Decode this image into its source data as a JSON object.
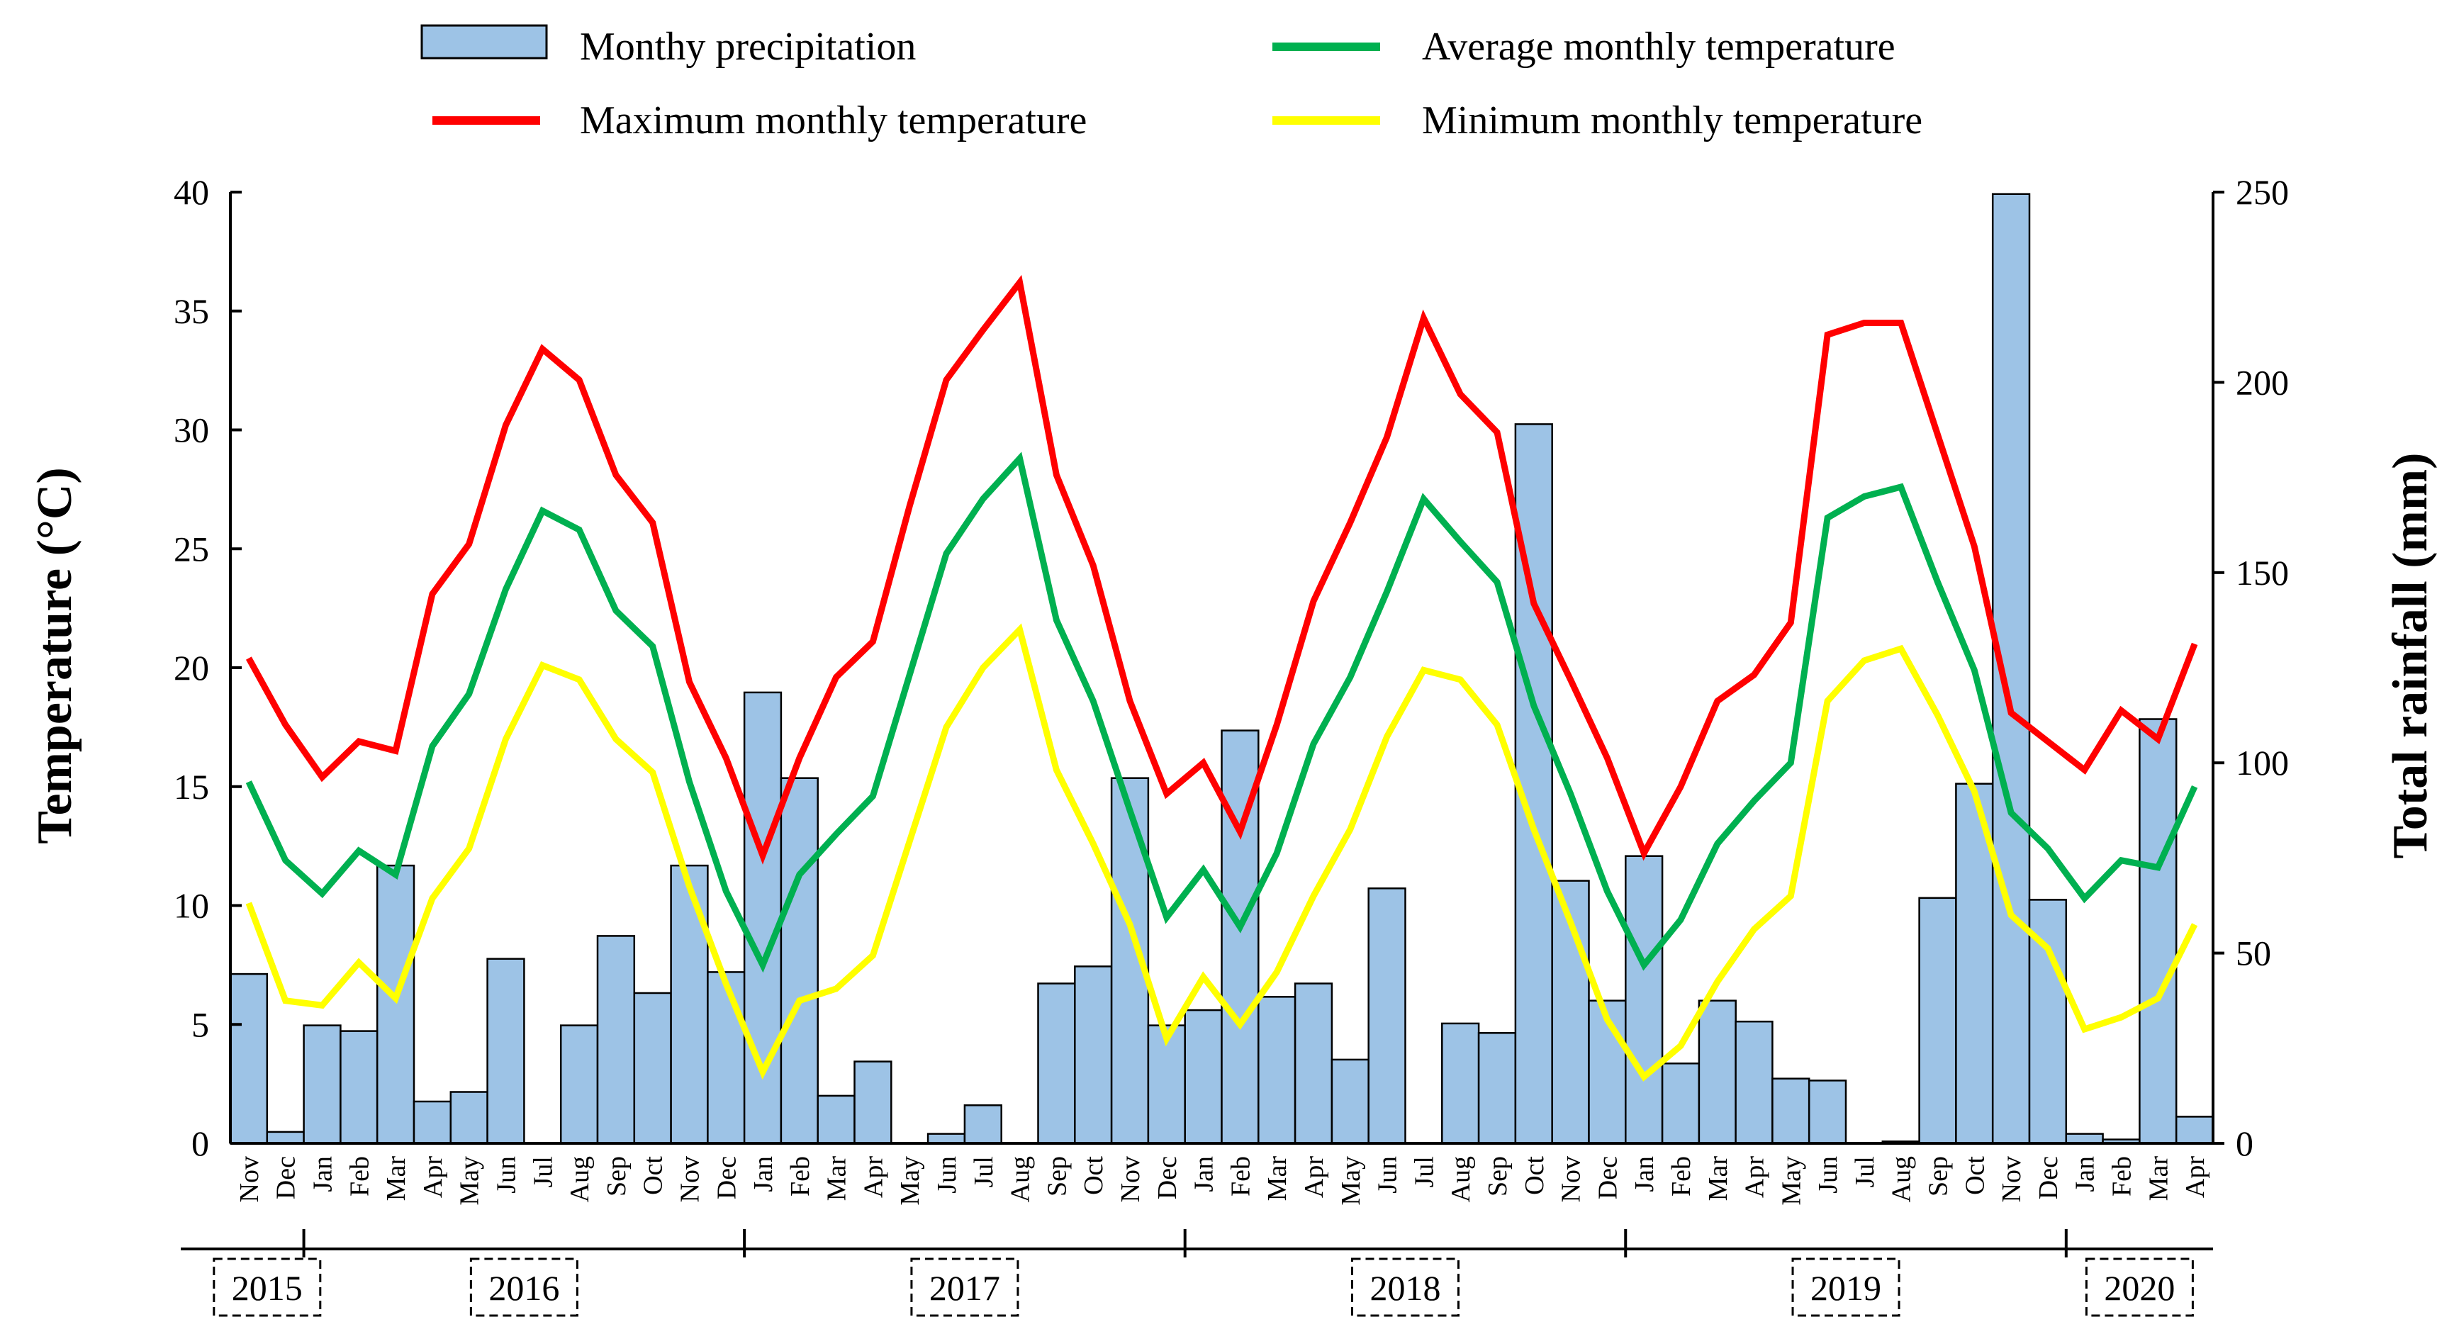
{
  "chart_data": {
    "type": "bar+line",
    "legend": {
      "precipitation": "Monthy precipitation",
      "max": "Maximum monthly temperature",
      "avg": "Average monthly temperature",
      "min": "Minimum monthly temperature"
    },
    "colors": {
      "bar_fill": "#9dc3e6",
      "bar_stroke": "#000000",
      "max": "#ff0000",
      "avg": "#00b050",
      "min": "#ffff00"
    },
    "y_left": {
      "label": "Temperature (°C)",
      "min": 0,
      "max": 40,
      "ticks": [
        "0",
        "5",
        "10",
        "15",
        "20",
        "25",
        "30",
        "35",
        "40"
      ]
    },
    "y_right": {
      "label": "Total rainfall (mm)",
      "min": 0,
      "max": 250,
      "ticks": [
        "0",
        "50",
        "100",
        "150",
        "200",
        "250"
      ]
    },
    "months": [
      "Nov",
      "Dec",
      "Jan",
      "Feb",
      "Mar",
      "Apr",
      "May",
      "Jun",
      "Jul",
      "Aug",
      "Sep",
      "Oct",
      "Nov",
      "Dec",
      "Jan",
      "Feb",
      "Mar",
      "Apr",
      "May",
      "Jun",
      "Jul",
      "Aug",
      "Sep",
      "Oct",
      "Nov",
      "Dec",
      "Jan",
      "Feb",
      "Mar",
      "Apr",
      "May",
      "Jun",
      "Jul",
      "Aug",
      "Sep",
      "Oct",
      "Nov",
      "Dec",
      "Jan",
      "Feb",
      "Mar",
      "Apr",
      "May",
      "Jun",
      "Jul",
      "Aug",
      "Sep",
      "Oct",
      "Nov",
      "Dec",
      "Jan",
      "Feb",
      "Mar",
      "Apr"
    ],
    "years": [
      {
        "label": "2015",
        "start": 0,
        "end": 1
      },
      {
        "label": "2016",
        "start": 2,
        "end": 13
      },
      {
        "label": "2017",
        "start": 14,
        "end": 25
      },
      {
        "label": "2018",
        "start": 26,
        "end": 37
      },
      {
        "label": "2019",
        "start": 38,
        "end": 49
      },
      {
        "label": "2020",
        "start": 50,
        "end": 53
      }
    ],
    "rainfall_mm": [
      44.5,
      3,
      31,
      29.5,
      73,
      11,
      13.5,
      48.5,
      0,
      31,
      54.5,
      39.5,
      73,
      45,
      118.5,
      96,
      12.5,
      21.5,
      0,
      2.5,
      10,
      0,
      42,
      46.5,
      96,
      31,
      35,
      108.5,
      38.5,
      42,
      22,
      67,
      0,
      31.5,
      29,
      189,
      69,
      37.5,
      75.5,
      21,
      37.5,
      32,
      17,
      16.5,
      0,
      0.5,
      64.5,
      94.5,
      249.5,
      64,
      2.5,
      1,
      111.5,
      7
    ],
    "max_temp": [
      20.4,
      17.6,
      15.4,
      16.9,
      16.5,
      23.1,
      25.2,
      30.2,
      33.4,
      32.1,
      28.1,
      26.1,
      19.4,
      16.2,
      12.1,
      16.2,
      19.6,
      21.1,
      26.8,
      32.1,
      34.2,
      36.2,
      28.1,
      24.3,
      18.6,
      14.7,
      16.0,
      13.1,
      17.6,
      22.8,
      26.1,
      29.7,
      34.7,
      31.5,
      29.9,
      22.7,
      19.5,
      16.2,
      12.2,
      15.0,
      18.6,
      19.7,
      21.9,
      34.0,
      34.5,
      34.5,
      29.8,
      25.1,
      18.1,
      16.9,
      15.7,
      18.2,
      17.0,
      21.0
    ],
    "avg_temp": [
      15.2,
      11.9,
      10.5,
      12.3,
      11.3,
      16.7,
      18.9,
      23.3,
      26.6,
      25.8,
      22.4,
      20.9,
      15.2,
      10.6,
      7.5,
      11.3,
      13.0,
      14.6,
      19.7,
      24.8,
      27.1,
      28.8,
      22.0,
      18.6,
      14.0,
      9.5,
      11.5,
      9.1,
      12.2,
      16.8,
      19.6,
      23.2,
      27.1,
      25.3,
      23.6,
      18.4,
      14.7,
      10.6,
      7.5,
      9.4,
      12.6,
      14.4,
      16.0,
      26.3,
      27.2,
      27.6,
      23.6,
      19.9,
      13.9,
      12.4,
      10.3,
      11.9,
      11.6,
      15.0
    ],
    "min_temp": [
      10.1,
      6.0,
      5.8,
      7.6,
      6.1,
      10.3,
      12.4,
      17.0,
      20.1,
      19.5,
      17.0,
      15.6,
      10.8,
      6.7,
      3.0,
      6.0,
      6.5,
      7.9,
      12.7,
      17.5,
      20.0,
      21.6,
      15.7,
      12.6,
      9.2,
      4.4,
      7.0,
      5.0,
      7.2,
      10.4,
      13.2,
      17.1,
      19.9,
      19.5,
      17.6,
      13.2,
      9.3,
      5.2,
      2.8,
      4.1,
      6.8,
      9.0,
      10.4,
      18.6,
      20.3,
      20.8,
      18.0,
      14.8,
      9.6,
      8.2,
      4.8,
      5.3,
      6.1,
      9.2
    ]
  }
}
